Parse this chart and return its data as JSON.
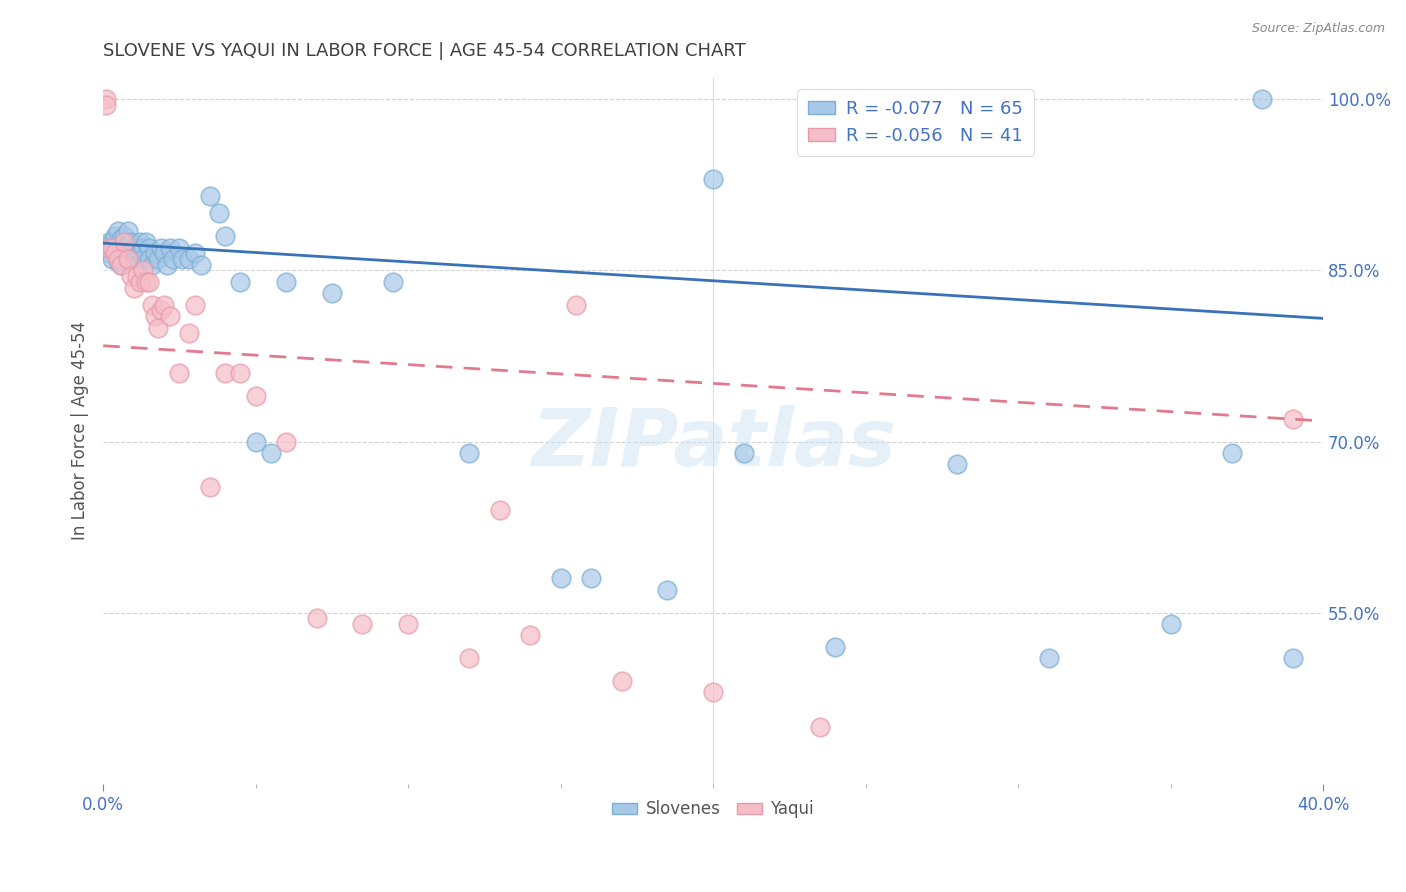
{
  "title": "SLOVENE VS YAQUI IN LABOR FORCE | AGE 45-54 CORRELATION CHART",
  "source": "Source: ZipAtlas.com",
  "ylabel": "In Labor Force | Age 45-54",
  "xmin": 0.0,
  "xmax": 0.4,
  "ymin": 0.4,
  "ymax": 1.02,
  "xtick_major": [
    0.0,
    0.4
  ],
  "xtick_minor": [
    0.05,
    0.1,
    0.15,
    0.2,
    0.25,
    0.3,
    0.35
  ],
  "yticks": [
    0.55,
    0.7,
    0.85,
    1.0
  ],
  "legend_blue_label": "R = -0.077   N = 65",
  "legend_pink_label": "R = -0.056   N = 41",
  "blue_scatter_color": "#a8c8e8",
  "blue_scatter_edge": "#7bafd4",
  "blue_line_color": "#3a72b8",
  "pink_scatter_color": "#f5bdc8",
  "pink_scatter_edge": "#e89aaa",
  "pink_line_color": "#e07a8c",
  "title_color": "#404040",
  "axis_label_color": "#4472c4",
  "watermark": "ZIPatlas",
  "blue_line_y0": 0.874,
  "blue_line_y1": 0.808,
  "pink_line_y0": 0.784,
  "pink_line_y1": 0.718,
  "slovenes_x": [
    0.001,
    0.002,
    0.002,
    0.003,
    0.003,
    0.003,
    0.004,
    0.004,
    0.005,
    0.005,
    0.005,
    0.006,
    0.006,
    0.006,
    0.007,
    0.007,
    0.008,
    0.008,
    0.009,
    0.009,
    0.01,
    0.01,
    0.011,
    0.012,
    0.012,
    0.013,
    0.013,
    0.014,
    0.015,
    0.015,
    0.016,
    0.017,
    0.018,
    0.019,
    0.02,
    0.021,
    0.022,
    0.023,
    0.025,
    0.026,
    0.028,
    0.03,
    0.032,
    0.035,
    0.038,
    0.04,
    0.045,
    0.05,
    0.055,
    0.06,
    0.075,
    0.095,
    0.12,
    0.15,
    0.185,
    0.21,
    0.24,
    0.28,
    0.31,
    0.35,
    0.37,
    0.39,
    0.2,
    0.16,
    0.38
  ],
  "slovenes_y": [
    0.87,
    0.875,
    0.865,
    0.875,
    0.87,
    0.86,
    0.88,
    0.87,
    0.885,
    0.87,
    0.858,
    0.878,
    0.865,
    0.855,
    0.88,
    0.87,
    0.885,
    0.865,
    0.875,
    0.86,
    0.87,
    0.86,
    0.87,
    0.875,
    0.865,
    0.87,
    0.86,
    0.875,
    0.87,
    0.86,
    0.855,
    0.865,
    0.86,
    0.87,
    0.865,
    0.855,
    0.87,
    0.86,
    0.87,
    0.86,
    0.86,
    0.865,
    0.855,
    0.915,
    0.9,
    0.88,
    0.84,
    0.7,
    0.69,
    0.84,
    0.83,
    0.84,
    0.69,
    0.58,
    0.57,
    0.69,
    0.52,
    0.68,
    0.51,
    0.54,
    0.69,
    0.51,
    0.93,
    0.58,
    1.0
  ],
  "yaqui_x": [
    0.001,
    0.001,
    0.002,
    0.003,
    0.004,
    0.005,
    0.006,
    0.007,
    0.008,
    0.009,
    0.01,
    0.011,
    0.012,
    0.013,
    0.014,
    0.015,
    0.016,
    0.017,
    0.018,
    0.019,
    0.02,
    0.022,
    0.025,
    0.028,
    0.03,
    0.035,
    0.04,
    0.045,
    0.05,
    0.06,
    0.07,
    0.085,
    0.1,
    0.12,
    0.14,
    0.17,
    0.2,
    0.235,
    0.13,
    0.155,
    0.39
  ],
  "yaqui_y": [
    1.0,
    0.995,
    0.87,
    0.87,
    0.865,
    0.86,
    0.855,
    0.875,
    0.86,
    0.845,
    0.835,
    0.845,
    0.84,
    0.85,
    0.84,
    0.84,
    0.82,
    0.81,
    0.8,
    0.815,
    0.82,
    0.81,
    0.76,
    0.795,
    0.82,
    0.66,
    0.76,
    0.76,
    0.74,
    0.7,
    0.545,
    0.54,
    0.54,
    0.51,
    0.53,
    0.49,
    0.48,
    0.45,
    0.64,
    0.82,
    0.72
  ]
}
